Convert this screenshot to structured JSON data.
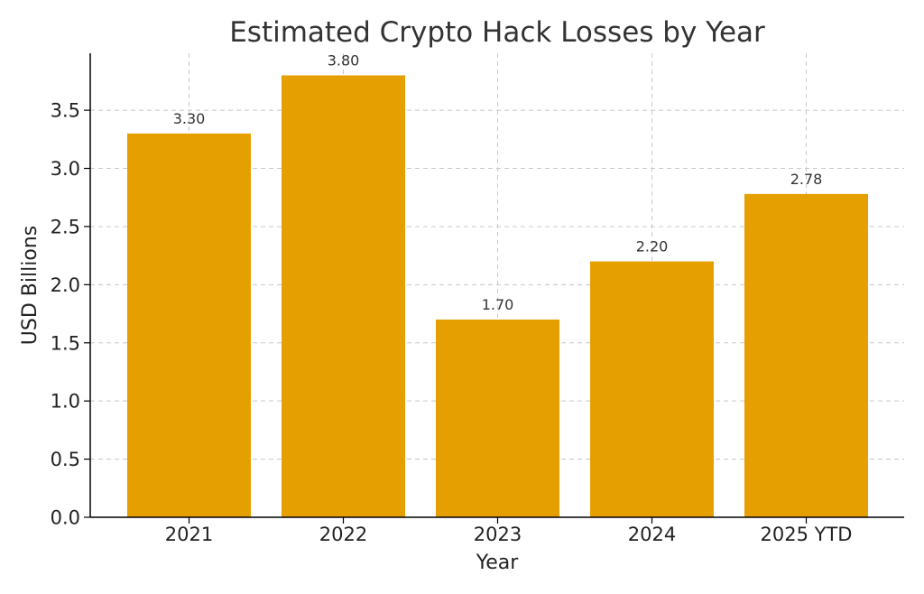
{
  "chart_data": {
    "type": "bar",
    "title": "Estimated Crypto Hack Losses by Year",
    "xlabel": "Year",
    "ylabel": "USD Billions",
    "categories": [
      "2021",
      "2022",
      "2023",
      "2024",
      "2025 YTD"
    ],
    "values": [
      3.3,
      3.8,
      1.7,
      2.2,
      2.78
    ],
    "value_labels": [
      "3.30",
      "3.80",
      "1.70",
      "2.20",
      "2.78"
    ],
    "ylim": [
      0,
      3.99
    ],
    "yticks": [
      0.0,
      0.5,
      1.0,
      1.5,
      2.0,
      2.5,
      3.0,
      3.5
    ],
    "ytick_labels": [
      "0.0",
      "0.5",
      "1.0",
      "1.5",
      "2.0",
      "2.5",
      "3.0",
      "3.5"
    ],
    "grid": true,
    "bar_color": "#E69F00"
  }
}
